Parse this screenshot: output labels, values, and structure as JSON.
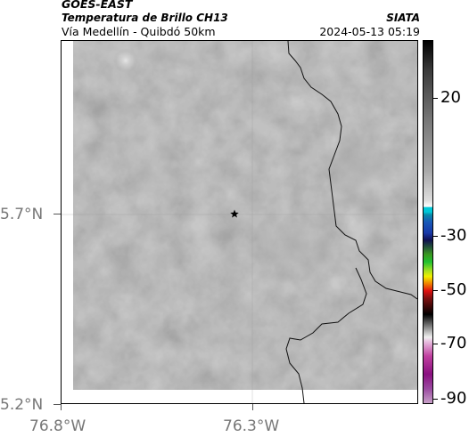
{
  "header": {
    "satellite": "GOES-EAST",
    "product": "Temperatura de Brillo CH13",
    "organization": "SIATA",
    "region": "Vía Medellín - Quibdó 50km",
    "timestamp": "2024-05-13 05:19"
  },
  "map": {
    "lat_labels": [
      "5.7°N",
      "5.2°N"
    ],
    "lon_labels": [
      "76.8°W",
      "76.3°W"
    ],
    "marker": "star-marker"
  },
  "colorbar": {
    "labels": [
      "20",
      "-30",
      "-50",
      "-70",
      "-90"
    ],
    "colors": {
      "warm": "#888888",
      "cyan": "#00c8d8",
      "blue": "#1838a8",
      "green": "#20c030",
      "yellow": "#f0f000",
      "red": "#e01010",
      "magenta": "#c040a0"
    }
  }
}
